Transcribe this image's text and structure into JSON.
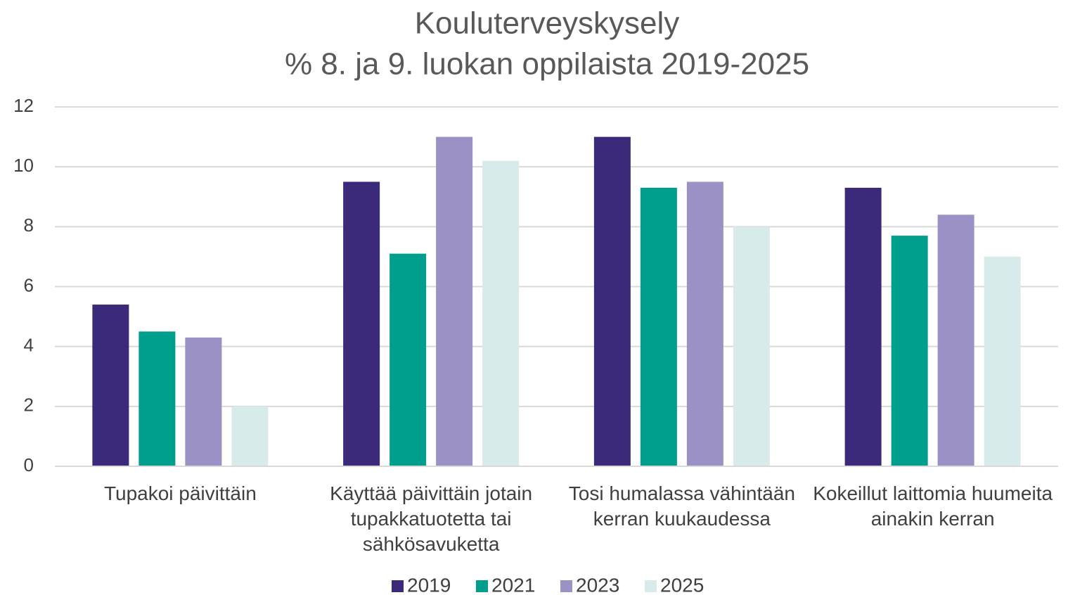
{
  "chart_data": {
    "type": "bar",
    "title": "Kouluterveyskysely",
    "subtitle": "% 8. ja 9. luokan oppilaista 2019-2025",
    "categories": [
      "Tupakoi päivittäin",
      "Käyttää päivittäin jotain tupakkatuotetta tai sähkösavuketta",
      "Tosi humalassa vähintään kerran kuukaudessa",
      "Kokeillut laittomia huumeita ainakin kerran"
    ],
    "series": [
      {
        "name": "2019",
        "color": "#3b2a7a",
        "values": [
          5.4,
          9.5,
          11,
          9.3
        ]
      },
      {
        "name": "2021",
        "color": "#009e8c",
        "values": [
          4.5,
          7.1,
          9.3,
          7.7
        ]
      },
      {
        "name": "2023",
        "color": "#9b91c4",
        "values": [
          4.3,
          11,
          9.5,
          8.4
        ]
      },
      {
        "name": "2025",
        "color": "#d6ebea",
        "values": [
          2,
          10.2,
          8,
          7
        ]
      }
    ],
    "ylim": [
      0,
      12
    ],
    "yticks": [
      0,
      2,
      4,
      6,
      8,
      10,
      12
    ],
    "grid": true,
    "legend": "bottom"
  }
}
